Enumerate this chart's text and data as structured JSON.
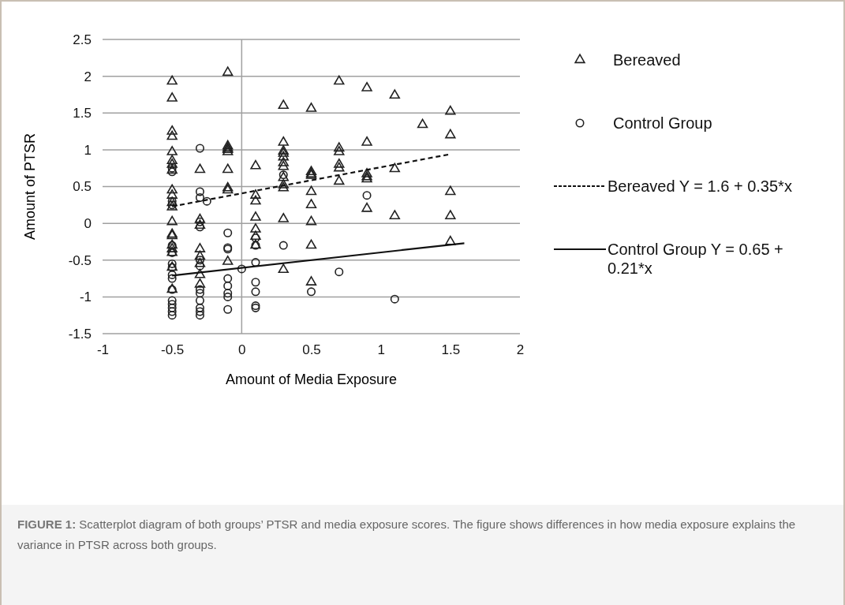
{
  "chart_data": {
    "type": "scatter",
    "xlabel": "Amount of Media Exposure",
    "ylabel": "Amount of PTSR",
    "xlim": [
      -1,
      2
    ],
    "xticks": [
      -1,
      -0.5,
      0,
      0.5,
      1,
      1.5,
      2
    ],
    "ylim": [
      -1.5,
      2.5
    ],
    "yticks": [
      -1.5,
      -1,
      -0.5,
      0,
      0.5,
      1,
      1.5,
      2,
      2.5
    ],
    "grid": "y",
    "legend": "right",
    "ref_lines": [
      {
        "axis": "x",
        "value": 0,
        "color": "#a0a0a0"
      }
    ],
    "series": [
      {
        "name": "Bereaved",
        "marker": "triangle",
        "color": "#222222",
        "x": [
          -0.5,
          -0.5,
          -0.5,
          -0.5,
          -0.5,
          -0.5,
          -0.5,
          -0.5,
          -0.5,
          -0.5,
          -0.5,
          -0.5,
          -0.5,
          -0.5,
          -0.5,
          -0.5,
          -0.5,
          -0.5,
          -0.5,
          -0.5,
          -0.3,
          -0.3,
          -0.3,
          -0.3,
          -0.3,
          -0.3,
          -0.3,
          -0.3,
          -0.1,
          -0.1,
          -0.1,
          -0.1,
          -0.1,
          -0.1,
          -0.1,
          -0.1,
          -0.1,
          0.1,
          0.1,
          0.1,
          0.1,
          0.1,
          0.1,
          0.1,
          0.3,
          0.3,
          0.3,
          0.3,
          0.3,
          0.3,
          0.3,
          0.3,
          0.3,
          0.3,
          0.3,
          0.3,
          0.5,
          0.5,
          0.5,
          0.5,
          0.5,
          0.5,
          0.5,
          0.5,
          0.5,
          0.7,
          0.7,
          0.7,
          0.7,
          0.7,
          0.7,
          0.9,
          0.9,
          0.9,
          0.9,
          0.9,
          0.9,
          1.1,
          1.1,
          1.1,
          1.3,
          1.5,
          1.5,
          1.5,
          1.5,
          1.5
        ],
        "values": [
          1.93,
          1.7,
          1.25,
          1.18,
          0.97,
          0.85,
          0.8,
          0.72,
          0.45,
          0.38,
          0.28,
          0.22,
          0.02,
          -0.15,
          -0.17,
          -0.3,
          -0.35,
          -0.4,
          -0.6,
          -0.9,
          0.73,
          0.05,
          -0.03,
          -0.35,
          -0.45,
          -0.55,
          -0.7,
          -0.83,
          2.05,
          1.05,
          1.02,
          1.0,
          0.97,
          0.73,
          0.48,
          0.45,
          -0.52,
          0.78,
          0.38,
          0.3,
          0.08,
          -0.08,
          -0.18,
          -0.3,
          1.6,
          1.1,
          0.98,
          0.95,
          0.9,
          0.82,
          0.77,
          0.62,
          0.52,
          0.48,
          0.06,
          -0.63,
          1.56,
          0.7,
          0.67,
          0.65,
          0.43,
          0.25,
          0.02,
          -0.3,
          -0.8,
          1.93,
          1.02,
          0.97,
          0.8,
          0.75,
          0.57,
          1.84,
          1.1,
          0.67,
          0.63,
          0.6,
          0.2,
          1.74,
          0.74,
          0.1,
          1.34,
          1.52,
          1.2,
          0.43,
          0.1,
          -0.25
        ]
      },
      {
        "name": "Control Group",
        "marker": "circle",
        "color": "#222222",
        "x": [
          -0.5,
          -0.5,
          -0.5,
          -0.5,
          -0.5,
          -0.5,
          -0.5,
          -0.5,
          -0.5,
          -0.5,
          -0.5,
          -0.5,
          -0.5,
          -0.5,
          -0.5,
          -0.5,
          -0.3,
          -0.3,
          -0.3,
          -0.3,
          -0.3,
          -0.3,
          -0.3,
          -0.3,
          -0.3,
          -0.3,
          -0.3,
          -0.3,
          -0.3,
          -0.25,
          -0.1,
          -0.1,
          -0.1,
          -0.1,
          -0.1,
          -0.1,
          -0.1,
          -0.1,
          0,
          0.1,
          0.1,
          0.1,
          0.1,
          0.1,
          0.1,
          0.1,
          0.3,
          0.3,
          0.5,
          0.7,
          0.9,
          1.1
        ],
        "values": [
          0.75,
          0.7,
          0.3,
          0.25,
          -0.3,
          -0.4,
          -0.55,
          -0.6,
          -0.7,
          -0.75,
          -0.9,
          -1.05,
          -1.1,
          -1.15,
          -1.2,
          -1.25,
          1.02,
          0.43,
          0.35,
          0.02,
          -0.05,
          -0.5,
          -0.58,
          -0.9,
          -0.95,
          -1.05,
          -1.15,
          -1.2,
          -1.25,
          0.3,
          -0.13,
          -0.33,
          -0.35,
          -0.75,
          -0.85,
          -0.95,
          -1.0,
          -1.17,
          -0.62,
          -0.2,
          -0.3,
          -0.53,
          -0.8,
          -0.93,
          -1.12,
          -1.15,
          0.66,
          -0.3,
          -0.93,
          -0.66,
          0.38,
          -1.03
        ]
      },
      {
        "name": "Bereaved Y = 1.6 + 0.35*x",
        "type": "line",
        "line_style": "dashed",
        "marker": "none",
        "color": "#111111",
        "x": [
          -0.5,
          1.5
        ],
        "values": [
          0.23,
          0.94
        ]
      },
      {
        "name": "Control Group Y = 0.65 + 0.21*x",
        "type": "line",
        "line_style": "solid",
        "marker": "none",
        "color": "#111111",
        "x": [
          -0.5,
          1.6
        ],
        "values": [
          -0.71,
          -0.27
        ]
      }
    ],
    "annotations": [
      "FIGURE 1: Scatterplot diagram of both groups’ PTSR and media exposure scores. The figure shows differences in how media exposure explains the variance in PTSR across both groups."
    ]
  }
}
